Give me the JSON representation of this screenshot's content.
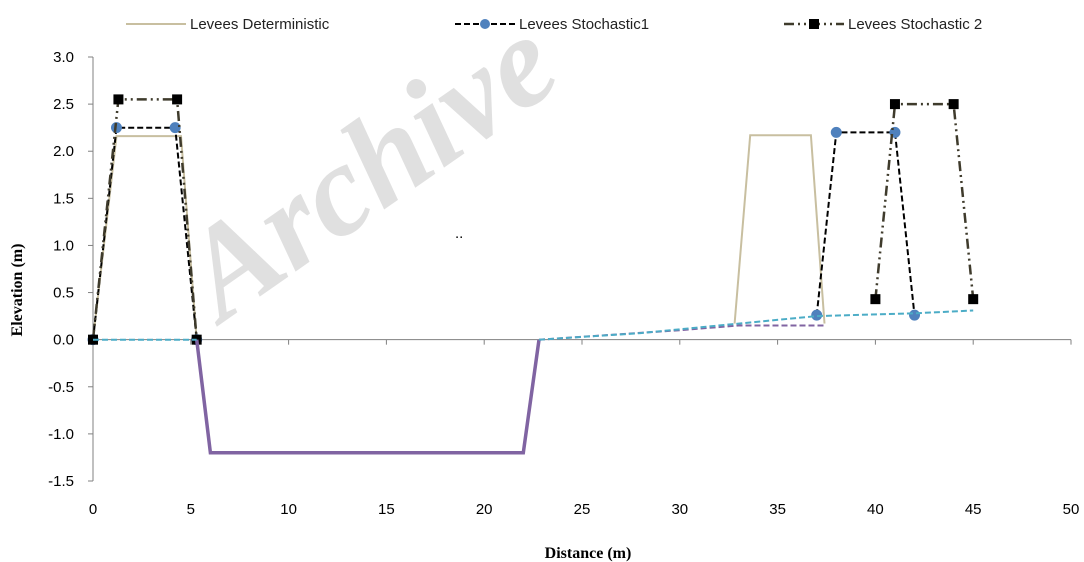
{
  "chart_data": {
    "type": "line",
    "xlabel": "Distance (m)",
    "ylabel": "Elevation (m)",
    "xlim": [
      0,
      50
    ],
    "ylim": [
      -1.5,
      3.0
    ],
    "x_ticks": [
      "0",
      "5",
      "10",
      "15",
      "20",
      "25",
      "30",
      "35",
      "40",
      "45",
      "50"
    ],
    "y_ticks": [
      "3.0",
      "2.5",
      "2.0",
      "1.5",
      "1.0",
      "0.5",
      "0.0",
      "-0.5",
      "-1.0",
      "-1.5"
    ],
    "grid": false,
    "legend_position": "top",
    "annotation": "..",
    "watermark": "Archive",
    "series": [
      {
        "name": "Levees Deterministic",
        "color": "#c8bfa0",
        "style": "solid",
        "marker": "none",
        "points": [
          [
            0,
            0
          ],
          [
            1.2,
            2.16
          ],
          [
            4.5,
            2.16
          ],
          [
            5.3,
            0
          ]
        ]
      },
      {
        "name": "Levees Deterministic",
        "color": "#c8bfa0",
        "style": "solid",
        "marker": "none",
        "points": [
          [
            32.8,
            0.17
          ],
          [
            33.6,
            2.17
          ],
          [
            36.7,
            2.17
          ],
          [
            37.4,
            0.17
          ]
        ]
      },
      {
        "name": "Levees Stochastic1",
        "color": "#000000",
        "style": "dashed",
        "marker": "circle",
        "marker_color": "#4f81bd",
        "points": [
          [
            0,
            0
          ],
          [
            1.2,
            2.25
          ],
          [
            4.2,
            2.25
          ],
          [
            5.3,
            0
          ]
        ]
      },
      {
        "name": "Levees Stochastic1",
        "color": "#000000",
        "style": "dashed",
        "marker": "circle",
        "marker_color": "#4f81bd",
        "points": [
          [
            37,
            0.26
          ],
          [
            38,
            2.2
          ],
          [
            41,
            2.2
          ],
          [
            42,
            0.26
          ]
        ]
      },
      {
        "name": "Levees Stochastic 2",
        "color": "#3f3b2c",
        "style": "dashdotdot",
        "marker": "square",
        "marker_color": "#000000",
        "points": [
          [
            0,
            0
          ],
          [
            1.3,
            2.55
          ],
          [
            4.3,
            2.55
          ],
          [
            5.3,
            0
          ]
        ]
      },
      {
        "name": "Levees Stochastic 2",
        "color": "#3f3b2c",
        "style": "dashdotdot",
        "marker": "square",
        "marker_color": "#000000",
        "points": [
          [
            40,
            0.43
          ],
          [
            41,
            2.5
          ],
          [
            44,
            2.5
          ],
          [
            45,
            0.43
          ]
        ]
      },
      {
        "name": "",
        "color": "#8064a2",
        "style": "solid-thick",
        "marker": "none",
        "points": [
          [
            5.3,
            0
          ],
          [
            6,
            -1.2
          ],
          [
            22,
            -1.2
          ],
          [
            22.8,
            0
          ]
        ]
      },
      {
        "name": "",
        "color": "#8064a2",
        "style": "dashed",
        "marker": "none",
        "points": [
          [
            22.8,
            0
          ],
          [
            30,
            0.1
          ],
          [
            33,
            0.15
          ],
          [
            37.4,
            0.15
          ]
        ]
      },
      {
        "name": "",
        "color": "#4bacc6",
        "style": "dashed",
        "marker": "none",
        "points": [
          [
            0,
            0
          ],
          [
            5.3,
            0
          ]
        ]
      },
      {
        "name": "",
        "color": "#4bacc6",
        "style": "dashed",
        "marker": "none",
        "points": [
          [
            22.8,
            0
          ],
          [
            28,
            0.07
          ],
          [
            33,
            0.17
          ],
          [
            37,
            0.25
          ],
          [
            42,
            0.28
          ],
          [
            45,
            0.31
          ]
        ]
      }
    ]
  }
}
